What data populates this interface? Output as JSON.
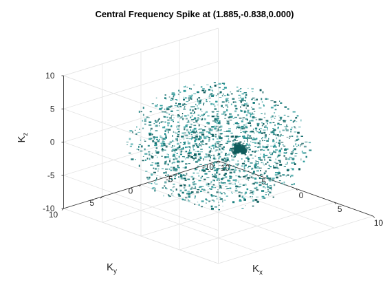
{
  "chart_data": {
    "type": "scatter",
    "title": "Central Frequency Spike at (1.885,-0.838,0.000)",
    "xlabel": "K",
    "xlabel_sub": "x",
    "ylabel": "K",
    "ylabel_sub": "y",
    "zlabel": "K",
    "zlabel_sub": "z",
    "xlim": [
      -10,
      10
    ],
    "ylim": [
      -10,
      10
    ],
    "zlim": [
      -10,
      10
    ],
    "xticks": [
      -10,
      -5,
      0,
      5,
      10
    ],
    "yticks": [
      -10,
      -5,
      0,
      5,
      10
    ],
    "zticks": [
      -10,
      -5,
      0,
      5,
      10
    ],
    "xtick_labels": [
      "-10",
      "-5",
      "0",
      "5",
      "10"
    ],
    "ytick_labels": [
      "-10",
      "-5",
      "0",
      "5",
      "10"
    ],
    "ztick_labels": [
      "-10",
      "-5",
      "0",
      "5",
      "10"
    ],
    "grid": true,
    "view": "3d",
    "surface_color": "#1b7f7f",
    "spike_color": "#0e5a5a",
    "spike_center": [
      1.885,
      -0.838,
      0.0
    ],
    "noise_region_radius": 8.5
  }
}
